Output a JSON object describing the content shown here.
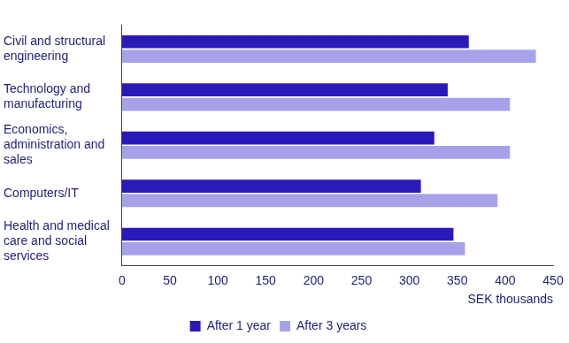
{
  "chart_data": {
    "type": "bar",
    "orientation": "horizontal",
    "categories": [
      [
        "Civil and structural",
        "engineering"
      ],
      [
        "Technology and",
        "manufacturing"
      ],
      [
        "Economics,",
        "administration and",
        "sales"
      ],
      [
        "Computers/IT"
      ],
      [
        "Health and medical",
        "care and social",
        "services"
      ]
    ],
    "series": [
      {
        "name": "After 1 year",
        "color": "#2a1ab8",
        "values": [
          362,
          340,
          326,
          312,
          346
        ]
      },
      {
        "name": "After 3 years",
        "color": "#a6a2ea",
        "values": [
          432,
          405,
          405,
          392,
          358
        ]
      }
    ],
    "x_label": "SEK thousands",
    "xlim": [
      0,
      450
    ],
    "xticks": [
      0,
      50,
      100,
      150,
      200,
      250,
      300,
      350,
      400,
      450
    ],
    "grid": false,
    "legend": "bottom"
  }
}
